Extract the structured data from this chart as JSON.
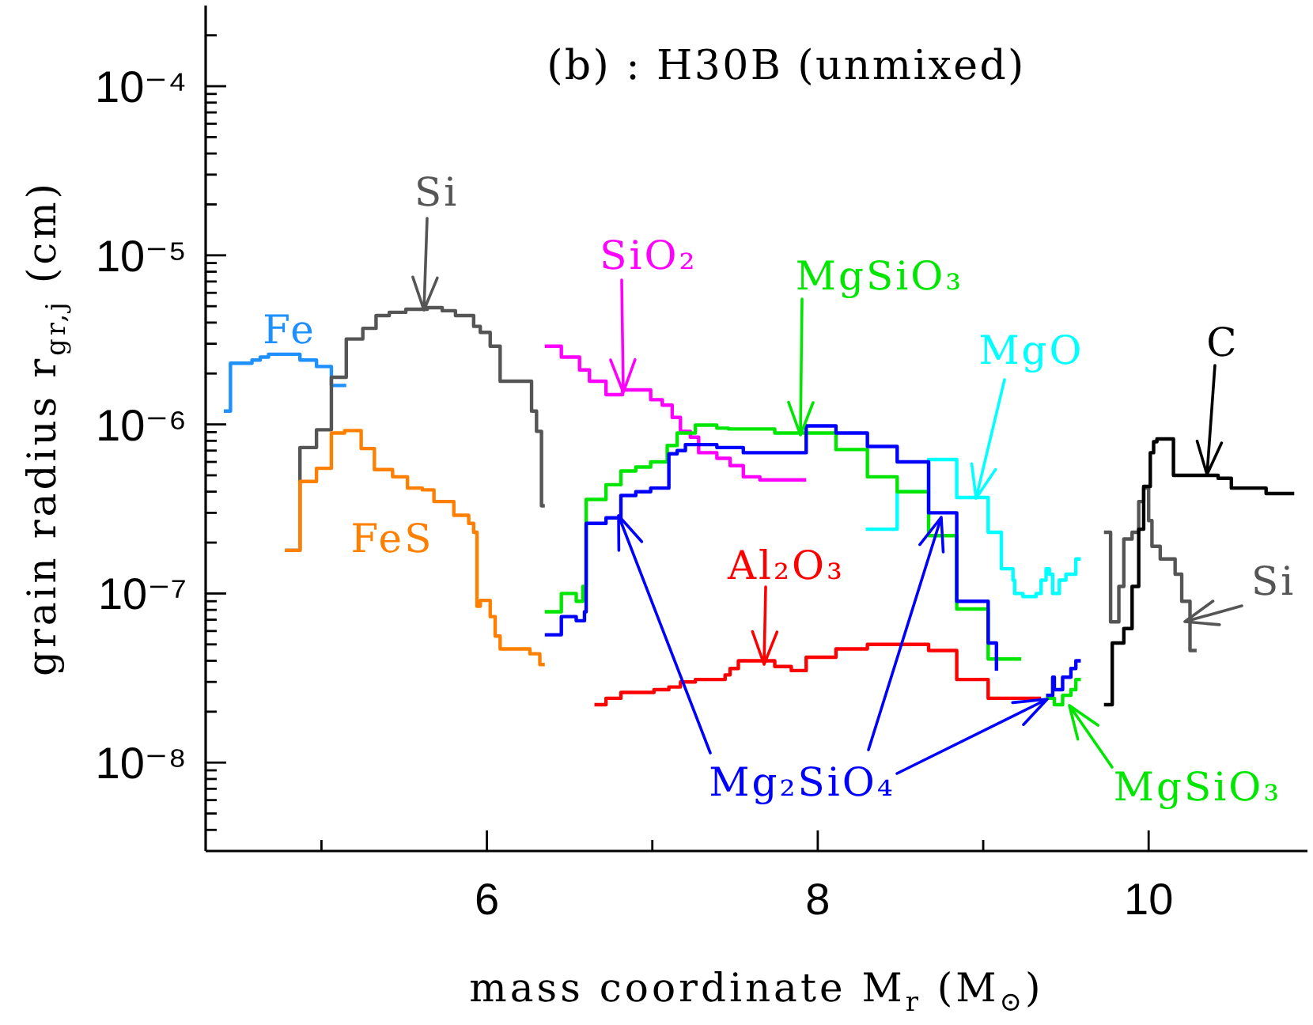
{
  "chart_data": {
    "type": "step",
    "title": "(b) : H30B (unmixed)",
    "xlabel": "mass coordinate M$_{r}$ (M$_{⊙}$)",
    "ylabel": "grain radius r$_{gr,j}$ (cm)",
    "log": "y",
    "marker": "none",
    "xlim": [
      4.3,
      10.96
    ],
    "xticks": [
      {
        "value": 5,
        "label": null
      },
      6,
      {
        "value": 7,
        "label": null
      },
      8,
      {
        "value": 9,
        "label": null
      },
      10
    ],
    "ylim": [
      3e-09,
      0.0003
    ],
    "yticks": [
      {
        "value": 4e-09,
        "label": null
      },
      {
        "value": 5e-09,
        "label": null
      },
      {
        "value": 6e-09,
        "label": null
      },
      {
        "value": 7e-09,
        "label": null
      },
      {
        "value": 8e-09,
        "label": null
      },
      {
        "value": 9e-09,
        "label": null
      },
      {
        "value": 1e-08,
        "label": "10⁻⁸"
      },
      {
        "value": 2e-08,
        "label": null
      },
      {
        "value": 3e-08,
        "label": null
      },
      {
        "value": 4e-08,
        "label": null
      },
      {
        "value": 5e-08,
        "label": null
      },
      {
        "value": 6e-08,
        "label": null
      },
      {
        "value": 7e-08,
        "label": null
      },
      {
        "value": 8e-08,
        "label": null
      },
      {
        "value": 9e-08,
        "label": null
      },
      {
        "value": 1e-07,
        "label": "10⁻⁷"
      },
      {
        "value": 2e-07,
        "label": null
      },
      {
        "value": 3e-07,
        "label": null
      },
      {
        "value": 4e-07,
        "label": null
      },
      {
        "value": 5e-07,
        "label": null
      },
      {
        "value": 6e-07,
        "label": null
      },
      {
        "value": 7e-07,
        "label": null
      },
      {
        "value": 8e-07,
        "label": null
      },
      {
        "value": 9e-07,
        "label": null
      },
      {
        "value": 1e-06,
        "label": "10⁻⁶"
      },
      {
        "value": 2e-06,
        "label": null
      },
      {
        "value": 3e-06,
        "label": null
      },
      {
        "value": 4e-06,
        "label": null
      },
      {
        "value": 5e-06,
        "label": null
      },
      {
        "value": 6e-06,
        "label": null
      },
      {
        "value": 7e-06,
        "label": null
      },
      {
        "value": 8e-06,
        "label": null
      },
      {
        "value": 9e-06,
        "label": null
      },
      {
        "value": 1e-05,
        "label": "10⁻⁵"
      },
      {
        "value": 2e-05,
        "label": null
      },
      {
        "value": 3e-05,
        "label": null
      },
      {
        "value": 4e-05,
        "label": null
      },
      {
        "value": 5e-05,
        "label": null
      },
      {
        "value": 6e-05,
        "label": null
      },
      {
        "value": 7e-05,
        "label": null
      },
      {
        "value": 8e-05,
        "label": null
      },
      {
        "value": 9e-05,
        "label": null
      },
      {
        "value": 0.0001,
        "label": "10⁻⁴"
      },
      {
        "value": 0.0002,
        "label": null
      }
    ],
    "series": [
      {
        "name": "Fe",
        "color": "#1e90ff",
        "x": [
          4.41,
          4.45,
          4.58,
          4.63,
          4.68,
          4.87,
          4.97,
          5.06,
          5.15
        ],
        "values": [
          1.2e-06,
          2.3e-06,
          2.4e-06,
          2.5e-06,
          2.6e-06,
          2.4e-06,
          2.2e-06,
          1.7e-06,
          1.7e-06
        ]
      },
      {
        "name": "Si",
        "color": "#555555",
        "x": [
          4.78,
          4.87,
          4.97,
          5.06,
          5.15,
          5.25,
          5.33,
          5.41,
          5.51,
          5.64,
          5.73,
          5.81,
          5.92,
          5.96,
          6.02,
          6.08,
          6.27,
          6.3,
          6.33,
          6.35,
          8.0,
          9.73,
          9.77,
          9.82,
          9.85,
          9.9,
          9.94,
          9.97,
          10.0,
          10.02,
          10.07,
          10.16,
          10.2,
          10.25,
          10.29
        ],
        "values": [
          1.8e-07,
          7.3e-07,
          9.3e-07,
          1.9e-06,
          3.2e-06,
          3.7e-06,
          4.4e-06,
          4.6e-06,
          4.8e-06,
          4.9e-06,
          4.7e-06,
          4.4e-06,
          3.8e-06,
          3.5e-06,
          2.9e-06,
          1.8e-06,
          1.2e-06,
          9.1e-07,
          3.3e-07,
          3.3e-07,
          null,
          2.3e-07,
          6.8e-08,
          1.1e-07,
          2.1e-07,
          2.3e-07,
          3.5e-07,
          4.2e-07,
          2.7e-07,
          1.9e-07,
          1.6e-07,
          1.3e-07,
          9e-08,
          4.6e-08,
          4.6e-08
        ]
      },
      {
        "name": "FeS",
        "color": "#ff8000",
        "x": [
          4.78,
          4.87,
          4.97,
          5.06,
          5.14,
          5.24,
          5.32,
          5.43,
          5.52,
          5.61,
          5.68,
          5.8,
          5.89,
          5.92,
          5.94,
          5.96,
          6.02,
          6.05,
          6.08,
          6.26,
          6.32,
          6.35
        ],
        "values": [
          1.8e-07,
          4.6e-07,
          5.5e-07,
          8.9e-07,
          9.2e-07,
          7.2e-07,
          5.4e-07,
          4.9e-07,
          4.2e-07,
          4.1e-07,
          3.5e-07,
          2.9e-07,
          2.6e-07,
          2.3e-07,
          8.4e-08,
          9.1e-08,
          7.3e-08,
          5.6e-08,
          4.7e-08,
          4.4e-08,
          3.8e-08,
          3.8e-08
        ]
      },
      {
        "name": "SiO₂",
        "color": "#ff00ff",
        "x": [
          6.35,
          6.45,
          6.56,
          6.62,
          6.72,
          6.82,
          6.99,
          7.06,
          7.12,
          7.17,
          7.23,
          7.28,
          7.39,
          7.47,
          7.55,
          7.65,
          7.93
        ],
        "values": [
          2.9e-06,
          2.5e-06,
          2.1e-06,
          1.8e-06,
          1.5e-06,
          1.6e-06,
          1.4e-06,
          1.3e-06,
          1.1e-06,
          9.1e-07,
          8.4e-07,
          6.8e-07,
          6.3e-07,
          5.7e-07,
          4.9e-07,
          4.7e-07,
          4.7e-07
        ]
      },
      {
        "name": "MgO",
        "color": "#00ffff",
        "x": [
          8.29,
          8.48,
          8.67,
          8.84,
          9.03,
          9.11,
          9.18,
          9.19,
          9.24,
          9.32,
          9.35,
          9.38,
          9.4,
          9.42,
          9.46,
          9.5,
          9.56,
          9.59
        ],
        "values": [
          2.4e-07,
          4e-07,
          6.2e-07,
          3.7e-07,
          2.3e-07,
          1.4e-07,
          1.2e-07,
          1e-07,
          9.6e-08,
          1e-07,
          1.2e-07,
          1.4e-07,
          1.3e-07,
          1e-07,
          1.2e-07,
          1.3e-07,
          1.6e-07,
          1.6e-07
        ]
      },
      {
        "name": "MgSiO₃",
        "color": "#00e600",
        "x": [
          6.35,
          6.45,
          6.54,
          6.58,
          6.6,
          6.72,
          6.81,
          6.9,
          6.99,
          7.09,
          7.15,
          7.26,
          7.39,
          7.46,
          7.74,
          8.11,
          8.3,
          8.48,
          8.67,
          8.84,
          9.03,
          9.23,
          9.3,
          9.38,
          9.43,
          9.48,
          9.53,
          9.56,
          9.59
        ],
        "values": [
          7.8e-08,
          1e-07,
          9e-08,
          1.1e-07,
          3.6e-07,
          4.4e-07,
          5.3e-07,
          5.6e-07,
          6e-07,
          7.5e-07,
          8.9e-07,
          9.9e-07,
          9.5e-07,
          9.4e-07,
          8.9e-07,
          7.1e-07,
          4.9e-07,
          4e-07,
          2.2e-07,
          8.1e-08,
          4.1e-08,
          4.1e-08,
          null,
          2.4e-08,
          2.2e-08,
          2.5e-08,
          2.7e-08,
          3.1e-08,
          3.1e-08
        ]
      },
      {
        "name": "Al₂O₃",
        "color": "#ff0000",
        "x": [
          6.65,
          6.72,
          6.81,
          7.01,
          7.1,
          7.17,
          7.26,
          7.44,
          7.47,
          7.52,
          7.74,
          7.84,
          7.93,
          8.11,
          8.3,
          8.67,
          8.84,
          9.03,
          9.35
        ],
        "values": [
          2.2e-08,
          2.4e-08,
          2.6e-08,
          2.7e-08,
          2.8e-08,
          3e-08,
          3.1e-08,
          3.3e-08,
          3.6e-08,
          4e-08,
          3.7e-08,
          3.5e-08,
          4.2e-08,
          4.7e-08,
          5e-08,
          4.6e-08,
          3.1e-08,
          2.4e-08,
          2.4e-08
        ]
      },
      {
        "name": "Mg₂SiO₄",
        "color": "#0000ff",
        "x": [
          6.35,
          6.45,
          6.54,
          6.59,
          6.6,
          6.72,
          6.81,
          6.9,
          6.99,
          7.1,
          7.15,
          7.2,
          7.39,
          7.55,
          7.93,
          8.11,
          8.3,
          8.48,
          8.67,
          8.84,
          9.03,
          9.08,
          9.25,
          9.38,
          9.42,
          9.43,
          9.48,
          9.53,
          9.56,
          9.59
        ],
        "values": [
          5.7e-08,
          7.3e-08,
          6.9e-08,
          7.8e-08,
          2.6e-07,
          2.8e-07,
          3.8e-07,
          4e-07,
          4.2e-07,
          6.7e-07,
          7e-07,
          7.6e-07,
          7.3e-07,
          6.8e-07,
          9.8e-07,
          8.9e-07,
          7.4e-07,
          6e-07,
          3e-07,
          9e-08,
          5.1e-08,
          3.5e-08,
          null,
          2.5e-08,
          3.2e-08,
          2.7e-08,
          3.2e-08,
          3.6e-08,
          4e-08,
          4e-08
        ]
      },
      {
        "name": "C",
        "color": "#000000",
        "x": [
          9.73,
          9.78,
          9.85,
          9.9,
          9.94,
          9.97,
          10.01,
          10.03,
          10.05,
          10.15,
          10.42,
          10.5,
          10.71,
          10.88
        ],
        "values": [
          2.2e-08,
          5.1e-08,
          6.2e-08,
          1.1e-07,
          2.4e-07,
          4.3e-07,
          6.8e-07,
          7.9e-07,
          8.2e-07,
          5e-07,
          4.8e-07,
          4.2e-07,
          3.9e-07,
          3.9e-07
        ]
      }
    ]
  }
}
